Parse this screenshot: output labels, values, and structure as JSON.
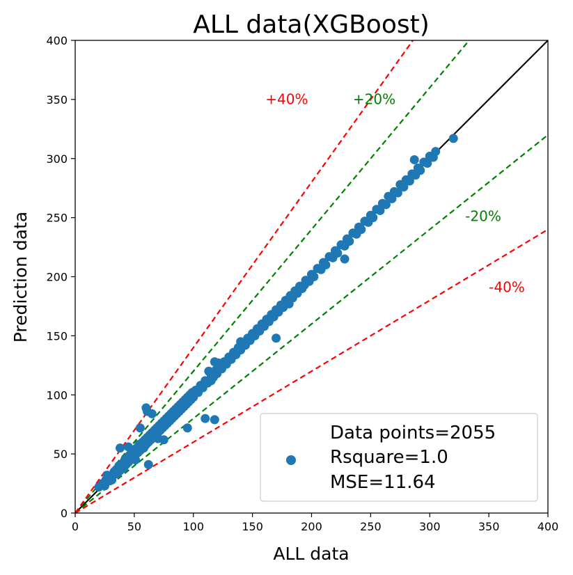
{
  "chart_data": {
    "type": "scatter",
    "title": "ALL data(XGBoost)",
    "xlabel": "ALL data",
    "ylabel": "Prediction data",
    "xlim": [
      0,
      400
    ],
    "ylim": [
      0,
      400
    ],
    "xticks": [
      0,
      50,
      100,
      150,
      200,
      250,
      300,
      350,
      400
    ],
    "yticks": [
      0,
      50,
      100,
      150,
      200,
      250,
      300,
      350,
      400
    ],
    "grid": false,
    "legend_position": "lower-right",
    "legend": {
      "lines": [
        "Data points=2055",
        "Rsquare=1.0",
        "MSE=11.64"
      ]
    },
    "colors": {
      "points": "#1f77b4",
      "identity": "#000000",
      "pm20": "#008000",
      "pm40": "#ff0000"
    },
    "reference_lines": [
      {
        "slope": 1.0,
        "style": "solid",
        "color": "#000000"
      },
      {
        "slope": 1.2,
        "style": "dashed",
        "color": "#008000"
      },
      {
        "slope": 0.8,
        "style": "dashed",
        "color": "#008000"
      },
      {
        "slope": 1.4,
        "style": "dashed",
        "color": "#ff0000"
      },
      {
        "slope": 0.6,
        "style": "dashed",
        "color": "#ff0000"
      }
    ],
    "annotations": [
      {
        "text": "+40%",
        "x": 161,
        "y": 346,
        "color": "#ff0000"
      },
      {
        "text": "+20%",
        "x": 235,
        "y": 346,
        "color": "#008000"
      },
      {
        "text": "-20%",
        "x": 330,
        "y": 247,
        "color": "#008000"
      },
      {
        "text": "-40%",
        "x": 350,
        "y": 187,
        "color": "#ff0000"
      }
    ],
    "series": [
      {
        "points": [
          [
            20,
            22
          ],
          [
            23,
            25
          ],
          [
            25,
            23
          ],
          [
            26,
            28
          ],
          [
            27,
            32
          ],
          [
            28,
            27
          ],
          [
            30,
            31
          ],
          [
            31,
            28
          ],
          [
            33,
            35
          ],
          [
            34,
            33
          ],
          [
            35,
            37
          ],
          [
            36,
            34
          ],
          [
            37,
            40
          ],
          [
            38,
            36
          ],
          [
            38,
            55
          ],
          [
            40,
            42
          ],
          [
            41,
            38
          ],
          [
            42,
            45
          ],
          [
            43,
            41
          ],
          [
            44,
            47
          ],
          [
            45,
            43
          ],
          [
            45,
            56
          ],
          [
            46,
            49
          ],
          [
            47,
            46
          ],
          [
            48,
            52
          ],
          [
            49,
            48
          ],
          [
            50,
            51
          ],
          [
            51,
            45
          ],
          [
            52,
            55
          ],
          [
            53,
            51
          ],
          [
            54,
            58
          ],
          [
            55,
            53
          ],
          [
            55,
            72
          ],
          [
            56,
            57
          ],
          [
            57,
            60
          ],
          [
            58,
            55
          ],
          [
            59,
            62
          ],
          [
            60,
            58
          ],
          [
            60,
            89
          ],
          [
            61,
            64
          ],
          [
            61,
            86
          ],
          [
            62,
            60
          ],
          [
            62,
            41
          ],
          [
            63,
            66
          ],
          [
            64,
            62
          ],
          [
            65,
            68
          ],
          [
            65,
            84
          ],
          [
            66,
            64
          ],
          [
            67,
            70
          ],
          [
            68,
            66
          ],
          [
            69,
            72
          ],
          [
            70,
            68
          ],
          [
            70,
            63
          ],
          [
            71,
            74
          ],
          [
            72,
            70
          ],
          [
            73,
            76
          ],
          [
            74,
            72
          ],
          [
            75,
            78
          ],
          [
            75,
            62
          ],
          [
            76,
            74
          ],
          [
            77,
            80
          ],
          [
            78,
            76
          ],
          [
            79,
            82
          ],
          [
            80,
            78
          ],
          [
            81,
            84
          ],
          [
            82,
            80
          ],
          [
            83,
            86
          ],
          [
            84,
            82
          ],
          [
            85,
            88
          ],
          [
            86,
            84
          ],
          [
            87,
            90
          ],
          [
            88,
            86
          ],
          [
            89,
            92
          ],
          [
            90,
            88
          ],
          [
            91,
            94
          ],
          [
            92,
            90
          ],
          [
            93,
            96
          ],
          [
            94,
            92
          ],
          [
            95,
            98
          ],
          [
            96,
            94
          ],
          [
            97,
            100
          ],
          [
            98,
            96
          ],
          [
            99,
            102
          ],
          [
            100,
            98
          ],
          [
            102,
            104
          ],
          [
            104,
            102
          ],
          [
            106,
            108
          ],
          [
            108,
            106
          ],
          [
            110,
            112
          ],
          [
            112,
            110
          ],
          [
            113,
            120
          ],
          [
            115,
            117
          ],
          [
            117,
            115
          ],
          [
            118,
            128
          ],
          [
            119,
            121
          ],
          [
            120,
            118
          ],
          [
            121,
            127
          ],
          [
            122,
            124
          ],
          [
            124,
            122
          ],
          [
            126,
            128
          ],
          [
            128,
            126
          ],
          [
            130,
            132
          ],
          [
            132,
            130
          ],
          [
            134,
            136
          ],
          [
            136,
            134
          ],
          [
            138,
            140
          ],
          [
            140,
            138
          ],
          [
            142,
            144
          ],
          [
            144,
            142
          ],
          [
            146,
            148
          ],
          [
            148,
            146
          ],
          [
            150,
            152
          ],
          [
            152,
            150
          ],
          [
            154,
            156
          ],
          [
            156,
            154
          ],
          [
            158,
            160
          ],
          [
            160,
            158
          ],
          [
            162,
            164
          ],
          [
            164,
            162
          ],
          [
            166,
            168
          ],
          [
            168,
            166
          ],
          [
            170,
            148
          ],
          [
            170,
            172
          ],
          [
            172,
            170
          ],
          [
            174,
            176
          ],
          [
            176,
            174
          ],
          [
            178,
            180
          ],
          [
            180,
            178
          ],
          [
            181,
            177
          ],
          [
            182,
            184
          ],
          [
            184,
            182
          ],
          [
            186,
            188
          ],
          [
            188,
            186
          ],
          [
            190,
            192
          ],
          [
            192,
            190
          ],
          [
            195,
            197
          ],
          [
            198,
            196
          ],
          [
            200,
            202
          ],
          [
            202,
            200
          ],
          [
            205,
            207
          ],
          [
            208,
            206
          ],
          [
            210,
            212
          ],
          [
            212,
            210
          ],
          [
            215,
            217
          ],
          [
            218,
            216
          ],
          [
            220,
            222
          ],
          [
            222,
            220
          ],
          [
            225,
            227
          ],
          [
            228,
            226
          ],
          [
            230,
            232
          ],
          [
            232,
            230
          ],
          [
            235,
            237
          ],
          [
            238,
            236
          ],
          [
            240,
            242
          ],
          [
            242,
            240
          ],
          [
            245,
            247
          ],
          [
            248,
            246
          ],
          [
            250,
            252
          ],
          [
            252,
            250
          ],
          [
            255,
            257
          ],
          [
            258,
            256
          ],
          [
            260,
            262
          ],
          [
            263,
            261
          ],
          [
            265,
            268
          ],
          [
            268,
            266
          ],
          [
            270,
            272
          ],
          [
            273,
            271
          ],
          [
            275,
            278
          ],
          [
            278,
            276
          ],
          [
            280,
            282
          ],
          [
            283,
            281
          ],
          [
            285,
            287
          ],
          [
            287,
            299
          ],
          [
            288,
            286
          ],
          [
            290,
            292
          ],
          [
            292,
            290
          ],
          [
            295,
            297
          ],
          [
            298,
            296
          ],
          [
            300,
            302
          ],
          [
            303,
            301
          ],
          [
            305,
            306
          ],
          [
            320,
            317
          ],
          [
            228,
            215
          ],
          [
            194,
            193
          ],
          [
            140,
            145
          ],
          [
            115,
            112
          ],
          [
            95,
            72
          ],
          [
            110,
            80
          ],
          [
            118,
            79
          ]
        ]
      }
    ]
  }
}
